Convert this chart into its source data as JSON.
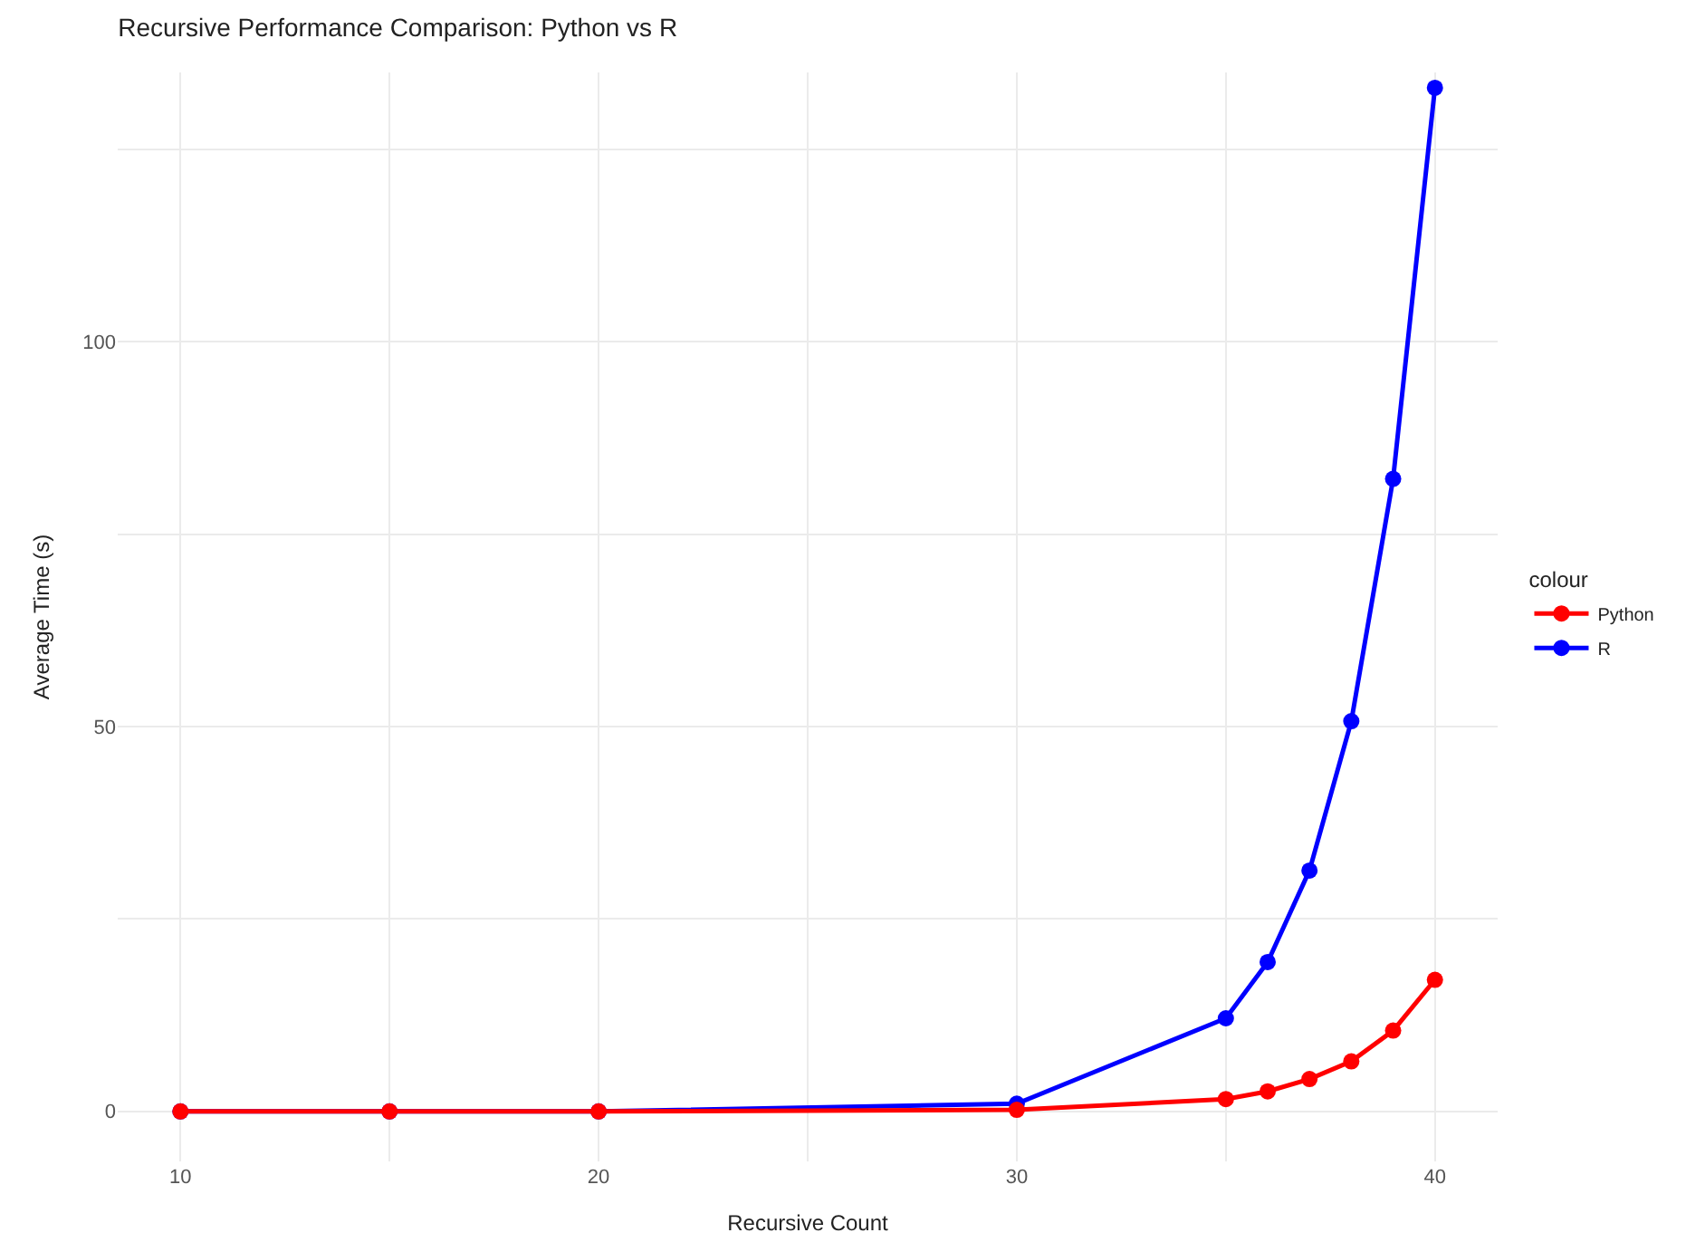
{
  "chart_data": {
    "type": "line",
    "title": "Recursive Performance Comparison: Python vs R",
    "xlabel": "Recursive Count",
    "ylabel": "Average Time (s)",
    "legend_title": "colour",
    "x": [
      10,
      15,
      20,
      30,
      35,
      36,
      37,
      38,
      39,
      40
    ],
    "series": [
      {
        "name": "Python",
        "color": "#ff0000",
        "values": [
          0,
          0,
          0,
          0.2,
          1.6,
          2.6,
          4.2,
          6.5,
          10.5,
          17.1
        ]
      },
      {
        "name": "R",
        "color": "#0000ff",
        "values": [
          0,
          0,
          0,
          1.0,
          12.1,
          19.4,
          31.3,
          50.7,
          82.2,
          133
        ]
      }
    ],
    "xlim": [
      8.5,
      41.5
    ],
    "ylim": [
      -6.5,
      135
    ],
    "xticks": [
      10,
      {
        "value": 15,
        "label": null
      },
      20,
      {
        "value": 25,
        "label": null
      },
      30,
      {
        "value": 35,
        "label": null
      },
      40
    ],
    "yticks": [
      0,
      {
        "value": 25,
        "label": null
      },
      50,
      {
        "value": 75,
        "label": null
      },
      100,
      {
        "value": 125,
        "label": null
      }
    ],
    "grid": true,
    "legend": "right",
    "marker": "circle",
    "line_style": "solid"
  }
}
